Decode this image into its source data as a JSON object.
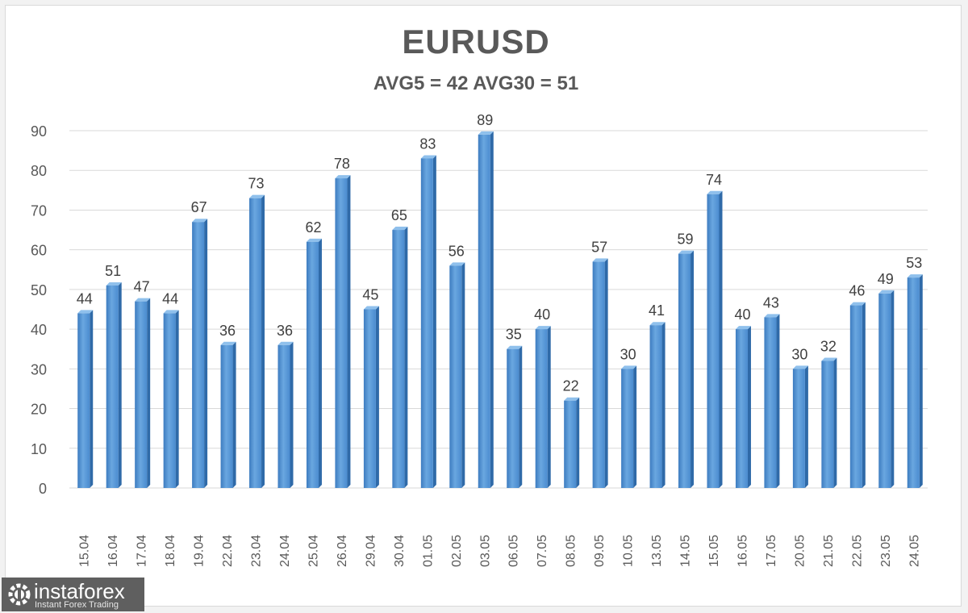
{
  "chart_data": {
    "type": "bar",
    "title": "EURUSD",
    "subtitle": "AVG5 = 42 AVG30 = 51",
    "categories": [
      "15.04",
      "16.04",
      "17.04",
      "18.04",
      "19.04",
      "22.04",
      "23.04",
      "24.04",
      "25.04",
      "26.04",
      "29.04",
      "30.04",
      "01.05",
      "02.05",
      "03.05",
      "06.05",
      "07.05",
      "08.05",
      "09.05",
      "10.05",
      "13.05",
      "14.05",
      "15.05",
      "16.05",
      "17.05",
      "20.05",
      "21.05",
      "22.05",
      "23.05",
      "24.05"
    ],
    "values": [
      44,
      51,
      47,
      44,
      67,
      36,
      73,
      36,
      62,
      78,
      45,
      65,
      83,
      56,
      89,
      35,
      40,
      22,
      57,
      30,
      41,
      59,
      74,
      40,
      43,
      30,
      32,
      46,
      49,
      53
    ],
    "ylim": [
      0,
      90
    ],
    "yticks": [
      0,
      10,
      20,
      30,
      40,
      50,
      60,
      70,
      80,
      90
    ],
    "grid": true,
    "data_labels": true,
    "bar_color": "#5b9bd5"
  },
  "watermark": {
    "name": "instaforex",
    "tagline": "Instant Forex Trading"
  }
}
